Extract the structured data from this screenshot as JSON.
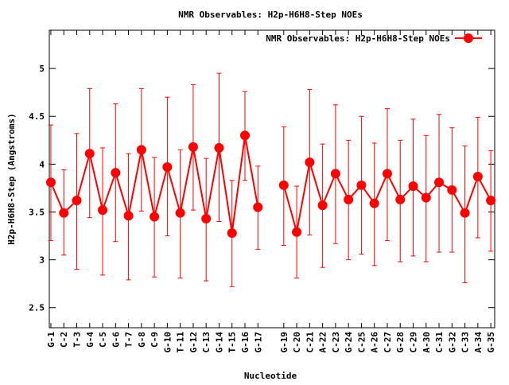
{
  "chart_data": {
    "type": "line",
    "title": "NMR Observables: H2p-H6H8-Step NOEs",
    "xlabel": "Nucleotide",
    "ylabel": "H2p-H6H8-Step (Angstroms)",
    "ylim": [
      2.29,
      5.4
    ],
    "xlim": [
      0.88,
      35.3
    ],
    "yticks": [
      "2.5",
      "3",
      "3.5",
      "4",
      "4.5",
      "5"
    ],
    "legend": {
      "label": "NMR Observables: H2p-H6H8-Step NOEs",
      "placement": "top-right"
    },
    "series_color": "#ff0000",
    "grid": false,
    "points": [
      {
        "x": 1,
        "label": "G-1",
        "y": 3.81,
        "lo": 3.2,
        "hi": 4.41
      },
      {
        "x": 2,
        "label": "C-2",
        "y": 3.49,
        "lo": 3.05,
        "hi": 3.94
      },
      {
        "x": 3,
        "label": "T-3",
        "y": 3.62,
        "lo": 2.9,
        "hi": 4.32
      },
      {
        "x": 4,
        "label": "G-4",
        "y": 4.11,
        "lo": 3.44,
        "hi": 4.79
      },
      {
        "x": 5,
        "label": "C-5",
        "y": 3.52,
        "lo": 2.84,
        "hi": 4.17
      },
      {
        "x": 6,
        "label": "G-6",
        "y": 3.91,
        "lo": 3.19,
        "hi": 4.63
      },
      {
        "x": 7,
        "label": "T-7",
        "y": 3.46,
        "lo": 2.79,
        "hi": 4.11
      },
      {
        "x": 8,
        "label": "G-8",
        "y": 4.15,
        "lo": 3.51,
        "hi": 4.79
      },
      {
        "x": 9,
        "label": "C-9",
        "y": 3.45,
        "lo": 2.82,
        "hi": 4.07
      },
      {
        "x": 10,
        "label": "G-10",
        "y": 3.97,
        "lo": 3.25,
        "hi": 4.7
      },
      {
        "x": 11,
        "label": "T-11",
        "y": 3.49,
        "lo": 2.81,
        "hi": 4.15
      },
      {
        "x": 12,
        "label": "G-12",
        "y": 4.18,
        "lo": 3.52,
        "hi": 4.83
      },
      {
        "x": 13,
        "label": "C-13",
        "y": 3.43,
        "lo": 2.78,
        "hi": 4.06
      },
      {
        "x": 14,
        "label": "G-14",
        "y": 4.17,
        "lo": 3.4,
        "hi": 4.95
      },
      {
        "x": 15,
        "label": "T-15",
        "y": 3.28,
        "lo": 2.72,
        "hi": 3.83
      },
      {
        "x": 16,
        "label": "G-16",
        "y": 4.3,
        "lo": 3.83,
        "hi": 4.76
      },
      {
        "x": 17,
        "label": "G-17",
        "y": 3.55,
        "lo": 3.11,
        "hi": 3.98
      },
      {
        "x": 19,
        "label": "G-19",
        "y": 3.78,
        "lo": 3.15,
        "hi": 4.39
      },
      {
        "x": 20,
        "label": "C-20",
        "y": 3.29,
        "lo": 2.81,
        "hi": 3.77
      },
      {
        "x": 21,
        "label": "C-21",
        "y": 4.02,
        "lo": 3.26,
        "hi": 4.78
      },
      {
        "x": 22,
        "label": "A-22",
        "y": 3.57,
        "lo": 2.92,
        "hi": 4.21
      },
      {
        "x": 23,
        "label": "C-23",
        "y": 3.9,
        "lo": 3.17,
        "hi": 4.62
      },
      {
        "x": 24,
        "label": "G-24",
        "y": 3.63,
        "lo": 3.0,
        "hi": 4.25
      },
      {
        "x": 25,
        "label": "C-25",
        "y": 3.78,
        "lo": 3.06,
        "hi": 4.5
      },
      {
        "x": 26,
        "label": "A-26",
        "y": 3.59,
        "lo": 2.94,
        "hi": 4.22
      },
      {
        "x": 27,
        "label": "C-27",
        "y": 3.9,
        "lo": 3.2,
        "hi": 4.58
      },
      {
        "x": 28,
        "label": "G-28",
        "y": 3.63,
        "lo": 2.98,
        "hi": 4.25
      },
      {
        "x": 29,
        "label": "C-29",
        "y": 3.77,
        "lo": 3.04,
        "hi": 4.47
      },
      {
        "x": 30,
        "label": "A-30",
        "y": 3.65,
        "lo": 2.98,
        "hi": 4.3
      },
      {
        "x": 31,
        "label": "C-31",
        "y": 3.81,
        "lo": 3.08,
        "hi": 4.52
      },
      {
        "x": 32,
        "label": "G-32",
        "y": 3.73,
        "lo": 3.08,
        "hi": 4.38
      },
      {
        "x": 33,
        "label": "C-33",
        "y": 3.49,
        "lo": 2.76,
        "hi": 4.19
      },
      {
        "x": 34,
        "label": "A-34",
        "y": 3.87,
        "lo": 3.23,
        "hi": 4.49
      },
      {
        "x": 35,
        "label": "G-35",
        "y": 3.62,
        "lo": 3.09,
        "hi": 4.14
      }
    ]
  }
}
